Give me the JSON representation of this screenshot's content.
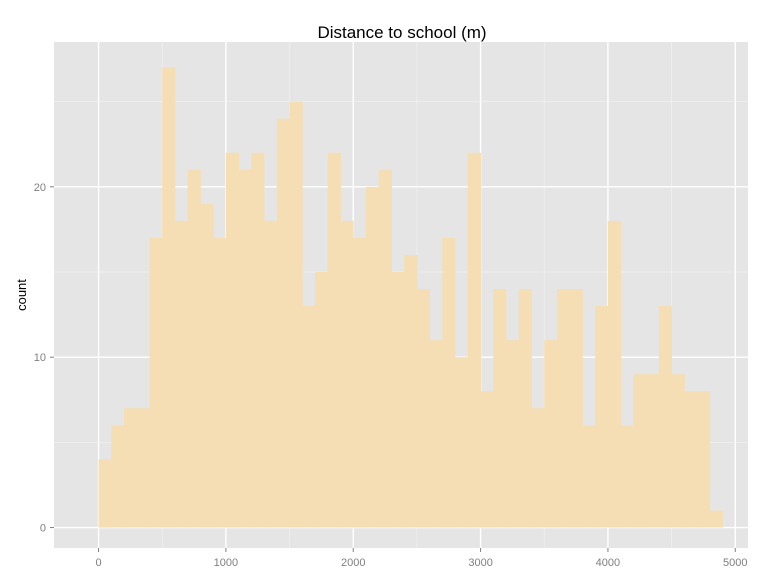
{
  "chart_data": {
    "type": "bar",
    "subtype": "histogram",
    "title": "Distance to school (m)",
    "xlabel": "",
    "ylabel": "count",
    "bin_width": 100,
    "x_start": 0,
    "counts": [
      4,
      6,
      7,
      7,
      17,
      27,
      18,
      21,
      19,
      17,
      22,
      21,
      22,
      18,
      24,
      25,
      13,
      15,
      22,
      18,
      17,
      20,
      21,
      15,
      16,
      14,
      11,
      17,
      10,
      22,
      8,
      14,
      11,
      14,
      7,
      11,
      14,
      14,
      6,
      13,
      18,
      6,
      9,
      9,
      13,
      9,
      8,
      8,
      1
    ],
    "xlim": [
      -350,
      5100
    ],
    "ylim": [
      -1.2,
      28.5
    ],
    "x_ticks": [
      0,
      1000,
      2000,
      3000,
      4000,
      5000
    ],
    "y_ticks": [
      0,
      10,
      20
    ],
    "x_minor_ticks": [
      500,
      1500,
      2500,
      3500,
      4500
    ],
    "y_minor_ticks": [
      5,
      15,
      25
    ],
    "grid": true,
    "legend": "none",
    "colors": {
      "panel_background": "#e5e5e5",
      "gridline": "#ffffff",
      "bar_fill": "#f5deb3"
    }
  }
}
